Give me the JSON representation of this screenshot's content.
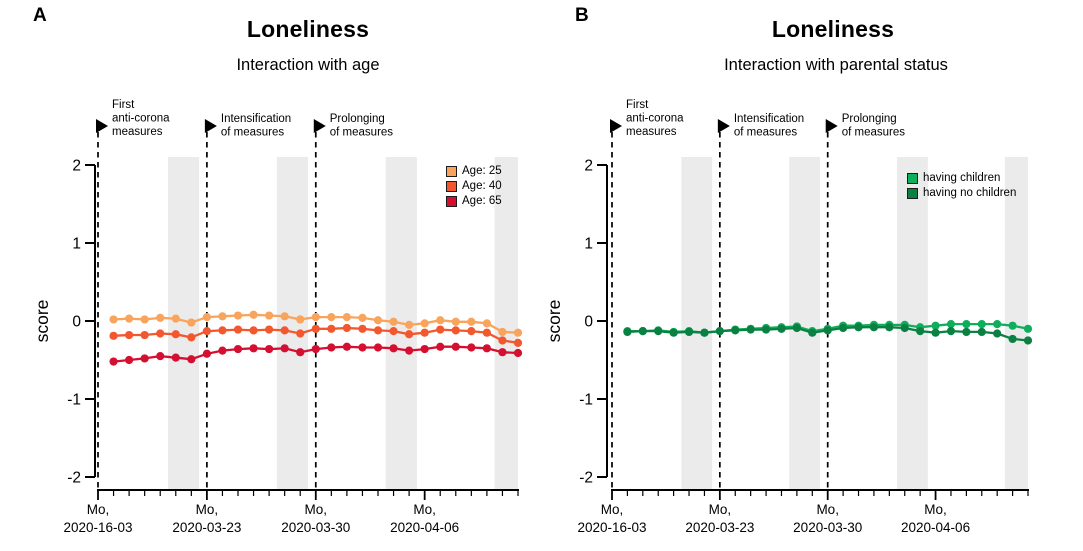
{
  "panel_labels": [
    "A",
    "B"
  ],
  "colors": {
    "weekend_band": "#EBEBEB",
    "axis": "#000000",
    "event_line": "#000000"
  },
  "chart_data": [
    {
      "type": "line",
      "title": "Loneliness",
      "subtitle": "Interaction with age",
      "ylabel": "score",
      "ylim": [
        -2,
        2
      ],
      "yticks": [
        2,
        1,
        0,
        -1,
        -2
      ],
      "x_days_range": [
        0,
        27
      ],
      "xticklabels": [
        {
          "day": 0,
          "line1": "Mo,",
          "line2": "2020-16-03"
        },
        {
          "day": 7,
          "line1": "Mo,",
          "line2": "2020-03-23"
        },
        {
          "day": 14,
          "line1": "Mo,",
          "line2": "2020-03-30"
        },
        {
          "day": 21,
          "line1": "Mo,",
          "line2": "2020-04-06"
        }
      ],
      "weekend_bands": [
        [
          4.5,
          6.5
        ],
        [
          11.5,
          13.5
        ],
        [
          18.5,
          20.5
        ],
        [
          25.5,
          27
        ]
      ],
      "events": [
        {
          "day": 0,
          "lines": [
            "First",
            "anti-corona",
            "measures"
          ]
        },
        {
          "day": 7,
          "lines": [
            "Intensification",
            "of measures"
          ]
        },
        {
          "day": 14,
          "lines": [
            "Prolonging",
            "of measures"
          ]
        }
      ],
      "series": [
        {
          "name": "Age: 25",
          "color": "#F9A45C",
          "first_day": 1,
          "values": [
            0.02,
            0.03,
            0.02,
            0.04,
            0.03,
            -0.02,
            0.05,
            0.06,
            0.07,
            0.08,
            0.07,
            0.06,
            0.02,
            0.05,
            0.05,
            0.05,
            0.04,
            0.01,
            -0.01,
            -0.05,
            -0.03,
            0.01,
            -0.01,
            -0.01,
            -0.03,
            -0.14,
            -0.15
          ]
        },
        {
          "name": "Age: 40",
          "color": "#F2572E",
          "first_day": 1,
          "values": [
            -0.19,
            -0.18,
            -0.18,
            -0.16,
            -0.17,
            -0.21,
            -0.13,
            -0.12,
            -0.11,
            -0.12,
            -0.11,
            -0.12,
            -0.16,
            -0.1,
            -0.1,
            -0.09,
            -0.1,
            -0.12,
            -0.13,
            -0.17,
            -0.15,
            -0.11,
            -0.12,
            -0.13,
            -0.15,
            -0.25,
            -0.28
          ]
        },
        {
          "name": "Age: 65",
          "color": "#D40F2F",
          "first_day": 1,
          "values": [
            -0.52,
            -0.5,
            -0.48,
            -0.45,
            -0.47,
            -0.49,
            -0.42,
            -0.38,
            -0.36,
            -0.35,
            -0.36,
            -0.35,
            -0.4,
            -0.36,
            -0.34,
            -0.33,
            -0.34,
            -0.34,
            -0.35,
            -0.38,
            -0.36,
            -0.33,
            -0.33,
            -0.34,
            -0.35,
            -0.4,
            -0.41
          ]
        }
      ]
    },
    {
      "type": "line",
      "title": "Loneliness",
      "subtitle": "Interaction with parental status",
      "ylabel": "score",
      "ylim": [
        -2,
        2
      ],
      "yticks": [
        2,
        1,
        0,
        -1,
        -2
      ],
      "x_days_range": [
        0,
        27
      ],
      "xticklabels": [
        {
          "day": 0,
          "line1": "Mo,",
          "line2": "2020-16-03"
        },
        {
          "day": 7,
          "line1": "Mo,",
          "line2": "2020-03-23"
        },
        {
          "day": 14,
          "line1": "Mo,",
          "line2": "2020-03-30"
        },
        {
          "day": 21,
          "line1": "Mo,",
          "line2": "2020-04-06"
        }
      ],
      "weekend_bands": [
        [
          4.5,
          6.5
        ],
        [
          11.5,
          13.5
        ],
        [
          18.5,
          20.5
        ],
        [
          25.5,
          27
        ]
      ],
      "events": [
        {
          "day": 0,
          "lines": [
            "First",
            "anti-corona",
            "measures"
          ]
        },
        {
          "day": 7,
          "lines": [
            "Intensification",
            "of measures"
          ]
        },
        {
          "day": 14,
          "lines": [
            "Prolonging",
            "of measures"
          ]
        }
      ],
      "series": [
        {
          "name": "having children",
          "color": "#0EAE5C",
          "first_day": 1,
          "values": [
            -0.13,
            -0.13,
            -0.12,
            -0.14,
            -0.13,
            -0.15,
            -0.13,
            -0.11,
            -0.1,
            -0.09,
            -0.08,
            -0.07,
            -0.13,
            -0.1,
            -0.06,
            -0.06,
            -0.05,
            -0.05,
            -0.05,
            -0.08,
            -0.06,
            -0.04,
            -0.04,
            -0.04,
            -0.04,
            -0.06,
            -0.1
          ]
        },
        {
          "name": "having no children",
          "color": "#0A8142",
          "first_day": 1,
          "values": [
            -0.14,
            -0.13,
            -0.13,
            -0.15,
            -0.14,
            -0.15,
            -0.13,
            -0.12,
            -0.11,
            -0.11,
            -0.1,
            -0.09,
            -0.15,
            -0.12,
            -0.09,
            -0.08,
            -0.08,
            -0.08,
            -0.09,
            -0.13,
            -0.15,
            -0.13,
            -0.14,
            -0.14,
            -0.16,
            -0.23,
            -0.25
          ]
        }
      ]
    }
  ]
}
